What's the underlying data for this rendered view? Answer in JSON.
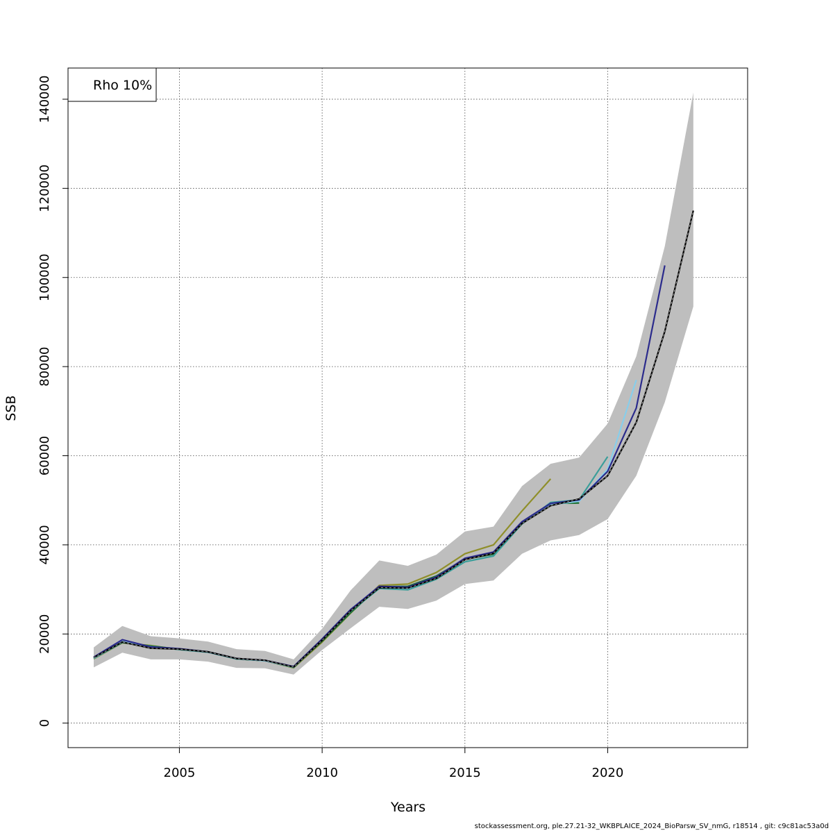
{
  "chart_data": {
    "type": "line",
    "title": "",
    "xlabel": "Years",
    "ylabel": "SSB",
    "xlim": [
      2001.1,
      2024.9
    ],
    "ylim": [
      -5500,
      147000
    ],
    "x_ticks": [
      2005,
      2010,
      2015,
      2020
    ],
    "y_ticks": [
      0,
      20000,
      40000,
      60000,
      80000,
      100000,
      120000,
      140000
    ],
    "grid": true,
    "legend": {
      "position": "top-left",
      "text": "Rho 10%"
    },
    "confidence_band": {
      "color": "#bebebe",
      "x": [
        2002,
        2003,
        2004,
        2005,
        2006,
        2007,
        2008,
        2009,
        2010,
        2011,
        2012,
        2013,
        2014,
        2015,
        2016,
        2017,
        2018,
        2019,
        2020,
        2021,
        2022,
        2023
      ],
      "lower": [
        12500,
        15800,
        14300,
        14300,
        13800,
        12400,
        12300,
        10900,
        16400,
        21300,
        26100,
        25600,
        27500,
        31200,
        32000,
        38000,
        41000,
        42200,
        45800,
        55500,
        72000,
        93500
      ],
      "upper": [
        17000,
        21800,
        19500,
        19000,
        18300,
        16600,
        16200,
        14300,
        21200,
        29800,
        36500,
        35300,
        37800,
        43000,
        44100,
        53200,
        58200,
        59600,
        67200,
        82300,
        107000,
        141500
      ]
    },
    "series": [
      {
        "color": "#000000",
        "dashed": true,
        "width": 2.2,
        "x": [
          2002,
          2003,
          2004,
          2005,
          2006,
          2007,
          2008,
          2009,
          2010,
          2011,
          2012,
          2013,
          2014,
          2015,
          2016,
          2017,
          2018,
          2019,
          2020,
          2021,
          2022,
          2023
        ],
        "values": [
          14700,
          18200,
          16800,
          16600,
          16000,
          14500,
          14100,
          12600,
          18600,
          25200,
          30400,
          30300,
          32500,
          36700,
          38100,
          44800,
          48800,
          50300,
          55500,
          67500,
          87900,
          115000
        ]
      },
      {
        "color": "#2b2b8c",
        "width": 2.2,
        "x": [
          2002,
          2003,
          2004,
          2005,
          2006,
          2007,
          2008,
          2009,
          2010,
          2011,
          2012,
          2013,
          2014,
          2015,
          2016,
          2017,
          2018,
          2019,
          2020,
          2021,
          2022
        ],
        "values": [
          14800,
          18700,
          17100,
          16700,
          16000,
          14500,
          14100,
          12700,
          18900,
          25500,
          30700,
          30500,
          32800,
          37000,
          38400,
          45200,
          49300,
          50100,
          56500,
          70700,
          102700
        ]
      },
      {
        "color": "#87ceeb",
        "width": 2.2,
        "x": [
          2002,
          2003,
          2004,
          2005,
          2006,
          2007,
          2008,
          2009,
          2010,
          2011,
          2012,
          2013,
          2014,
          2015,
          2016,
          2017,
          2018,
          2019,
          2020,
          2021
        ],
        "values": [
          14600,
          18300,
          17000,
          16600,
          16000,
          14500,
          14000,
          12600,
          18700,
          25300,
          30500,
          30200,
          32600,
          36800,
          38200,
          45100,
          49000,
          49800,
          57000,
          77000
        ]
      },
      {
        "color": "#3a9e9a",
        "width": 2.2,
        "x": [
          2002,
          2003,
          2004,
          2005,
          2006,
          2007,
          2008,
          2009,
          2010,
          2011,
          2012,
          2013,
          2014,
          2015,
          2016,
          2017,
          2018,
          2019,
          2020
        ],
        "values": [
          14500,
          18100,
          17200,
          16500,
          15900,
          14400,
          14000,
          12500,
          18600,
          25100,
          30200,
          29900,
          32300,
          36200,
          37500,
          44700,
          49500,
          50100,
          59800
        ]
      },
      {
        "color": "#1a6e2c",
        "width": 2.2,
        "x": [
          2002,
          2003,
          2004,
          2005,
          2006,
          2007,
          2008,
          2009,
          2010,
          2011,
          2012,
          2013,
          2014,
          2015,
          2016,
          2017,
          2018,
          2019
        ],
        "values": [
          14600,
          18100,
          17300,
          16600,
          16000,
          14400,
          14000,
          12600,
          18400,
          24800,
          30600,
          30700,
          33000,
          36800,
          37900,
          44800,
          49300,
          49400
        ]
      },
      {
        "color": "#8f8f2a",
        "width": 2.2,
        "x": [
          2002,
          2003,
          2004,
          2005,
          2006,
          2007,
          2008,
          2009,
          2010,
          2011,
          2012,
          2013,
          2014,
          2015,
          2016,
          2017,
          2018
        ],
        "values": [
          14400,
          18000,
          17400,
          16500,
          16000,
          14400,
          14000,
          12400,
          18200,
          24700,
          30900,
          31200,
          33800,
          38000,
          40000,
          47600,
          54800
        ]
      }
    ]
  },
  "footer": "stockassessment.org, ple.27.21-32_WKBPLAICE_2024_BioParsw_SV_nmG, r18514 , git: c9c81ac53a0d"
}
